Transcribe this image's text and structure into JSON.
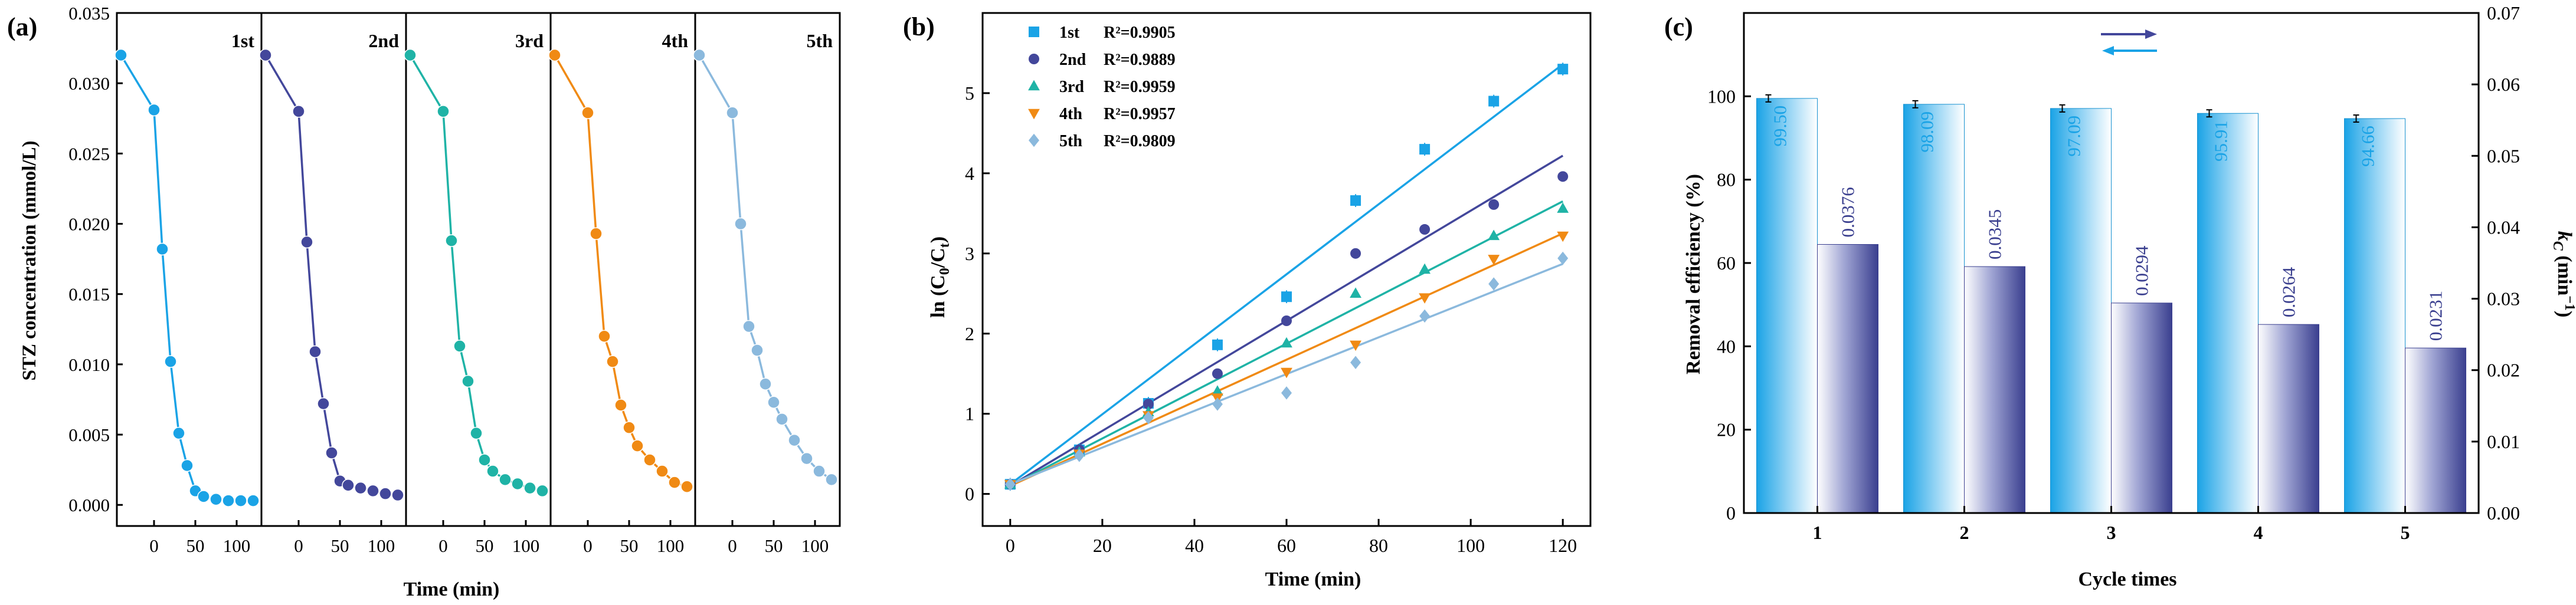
{
  "chart_data": [
    {
      "panel_label": "(a)",
      "type": "line",
      "title": "",
      "xlabel": "Time (min)",
      "ylabel": "STZ concentration (mmol/L)",
      "ylim": [
        -0.0015,
        0.035
      ],
      "xlim": [
        -45,
        130
      ],
      "yticks": [
        0.0,
        0.005,
        0.01,
        0.015,
        0.02,
        0.025,
        0.03,
        0.035
      ],
      "ytick_labels": [
        "0.000",
        "0.005",
        "0.010",
        "0.015",
        "0.020",
        "0.025",
        "0.030",
        "0.035"
      ],
      "xticks": [
        0,
        50,
        100
      ],
      "xtick_labels": [
        "0",
        "50",
        "100"
      ],
      "x": [
        -40,
        0,
        10,
        20,
        30,
        40,
        50,
        60,
        75,
        90,
        105,
        120
      ],
      "series": [
        {
          "name": "1st",
          "color": "#1AA3E6",
          "values": [
            0.032,
            0.0281,
            0.0182,
            0.0102,
            0.0051,
            0.0028,
            0.001,
            0.0006,
            0.0004,
            0.0003,
            0.0003,
            0.0003
          ]
        },
        {
          "name": "2nd",
          "color": "#43479B",
          "values": [
            0.032,
            0.028,
            0.0187,
            0.0109,
            0.0072,
            0.0037,
            0.0017,
            0.0014,
            0.0012,
            0.001,
            0.0008,
            0.0007
          ]
        },
        {
          "name": "3rd",
          "color": "#1FB3A6",
          "values": [
            0.032,
            0.028,
            0.0188,
            0.0113,
            0.0088,
            0.0051,
            0.0032,
            0.0024,
            0.0018,
            0.0015,
            0.0012,
            0.001
          ]
        },
        {
          "name": "4th",
          "color": "#F08A14",
          "values": [
            0.032,
            0.0279,
            0.0193,
            0.012,
            0.0102,
            0.0071,
            0.0055,
            0.0042,
            0.0032,
            0.0024,
            0.0016,
            0.0013
          ]
        },
        {
          "name": "5th",
          "color": "#8BB9DD",
          "values": [
            0.032,
            0.0279,
            0.02,
            0.0127,
            0.011,
            0.0086,
            0.0073,
            0.0061,
            0.0046,
            0.0033,
            0.0024,
            0.0018
          ]
        }
      ]
    },
    {
      "panel_label": "(b)",
      "type": "scatter",
      "title": "",
      "xlabel": "Time (min)",
      "ylabel_parts": [
        "ln (C",
        "0",
        "/C",
        "t",
        ")"
      ],
      "ylim": [
        -0.4,
        6.0
      ],
      "xlim": [
        -6,
        126
      ],
      "yticks": [
        0,
        1,
        2,
        3,
        4,
        5
      ],
      "ytick_labels": [
        "0",
        "1",
        "2",
        "3",
        "4",
        "5"
      ],
      "xticks": [
        0,
        20,
        40,
        60,
        80,
        100,
        120
      ],
      "xtick_labels": [
        "0",
        "20",
        "40",
        "60",
        "80",
        "100",
        "120"
      ],
      "x": [
        0,
        15,
        30,
        45,
        60,
        75,
        90,
        105,
        120
      ],
      "series": [
        {
          "name": "1st",
          "r2": "R²=0.9905",
          "color": "#1AA3E6",
          "marker": "square",
          "values": [
            0.12,
            0.55,
            1.13,
            1.86,
            2.46,
            3.66,
            4.3,
            4.9,
            5.3
          ],
          "fit": [
            0.12,
            5.36
          ],
          "err": 0.08
        },
        {
          "name": "2nd",
          "r2": "R²=0.9889",
          "color": "#43479B",
          "marker": "circle",
          "values": [
            0.12,
            0.55,
            1.12,
            1.5,
            2.16,
            3.0,
            3.3,
            3.61,
            3.96
          ],
          "fit": [
            0.1,
            4.22
          ],
          "err": 0.05
        },
        {
          "name": "3rd",
          "r2": "R²=0.9959",
          "color": "#1FB3A6",
          "marker": "triangle",
          "values": [
            0.12,
            0.52,
            1.02,
            1.28,
            1.88,
            2.5,
            2.8,
            3.22,
            3.56
          ],
          "fit": [
            0.1,
            3.65
          ],
          "err": 0.04
        },
        {
          "name": "4th",
          "r2": "R²=0.9957",
          "color": "#F08A14",
          "marker": "triangle-down",
          "values": [
            0.12,
            0.5,
            0.98,
            1.2,
            1.52,
            1.86,
            2.45,
            2.93,
            3.22
          ],
          "fit": [
            0.1,
            3.25
          ],
          "err": 0.04
        },
        {
          "name": "5th",
          "r2": "R²=0.9809",
          "color": "#8BB9DD",
          "marker": "diamond",
          "values": [
            0.12,
            0.48,
            0.95,
            1.12,
            1.26,
            1.64,
            2.22,
            2.62,
            2.94
          ],
          "fit": [
            0.12,
            2.87
          ],
          "err": 0.03
        }
      ]
    },
    {
      "panel_label": "(c)",
      "type": "bar",
      "title": "",
      "xlabel": "Cycle times",
      "ylabel_left": "Removal efficiency (%)",
      "ylabel_right_parts": [
        "k",
        "C",
        " (min",
        "−1",
        ")"
      ],
      "ylim_left": [
        0,
        120
      ],
      "ylim_right": [
        0,
        0.07
      ],
      "yticks_left": [
        0,
        20,
        40,
        60,
        80,
        100
      ],
      "ytick_labels_left": [
        "0",
        "20",
        "40",
        "60",
        "80",
        "100"
      ],
      "yticks_right": [
        0.0,
        0.01,
        0.02,
        0.03,
        0.04,
        0.05,
        0.06,
        0.07
      ],
      "ytick_labels_right": [
        "0.00",
        "0.01",
        "0.02",
        "0.03",
        "0.04",
        "0.05",
        "0.06",
        "0.07"
      ],
      "categories": [
        "1",
        "2",
        "3",
        "4",
        "5"
      ],
      "series": [
        {
          "name": "Removal efficiency",
          "axis": "left",
          "color": "#1AA3E6",
          "values": [
            99.5,
            98.09,
            97.09,
            95.91,
            94.66
          ],
          "labels": [
            "99.50",
            "98.09",
            "97.09",
            "95.91",
            "94.66"
          ]
        },
        {
          "name": "kC",
          "axis": "right",
          "color": "#3A3F8F",
          "values": [
            0.0376,
            0.0345,
            0.0294,
            0.0264,
            0.0231
          ],
          "labels": [
            "0.0376",
            "0.0345",
            "0.0294",
            "0.0264",
            "0.0231"
          ]
        }
      ]
    }
  ]
}
